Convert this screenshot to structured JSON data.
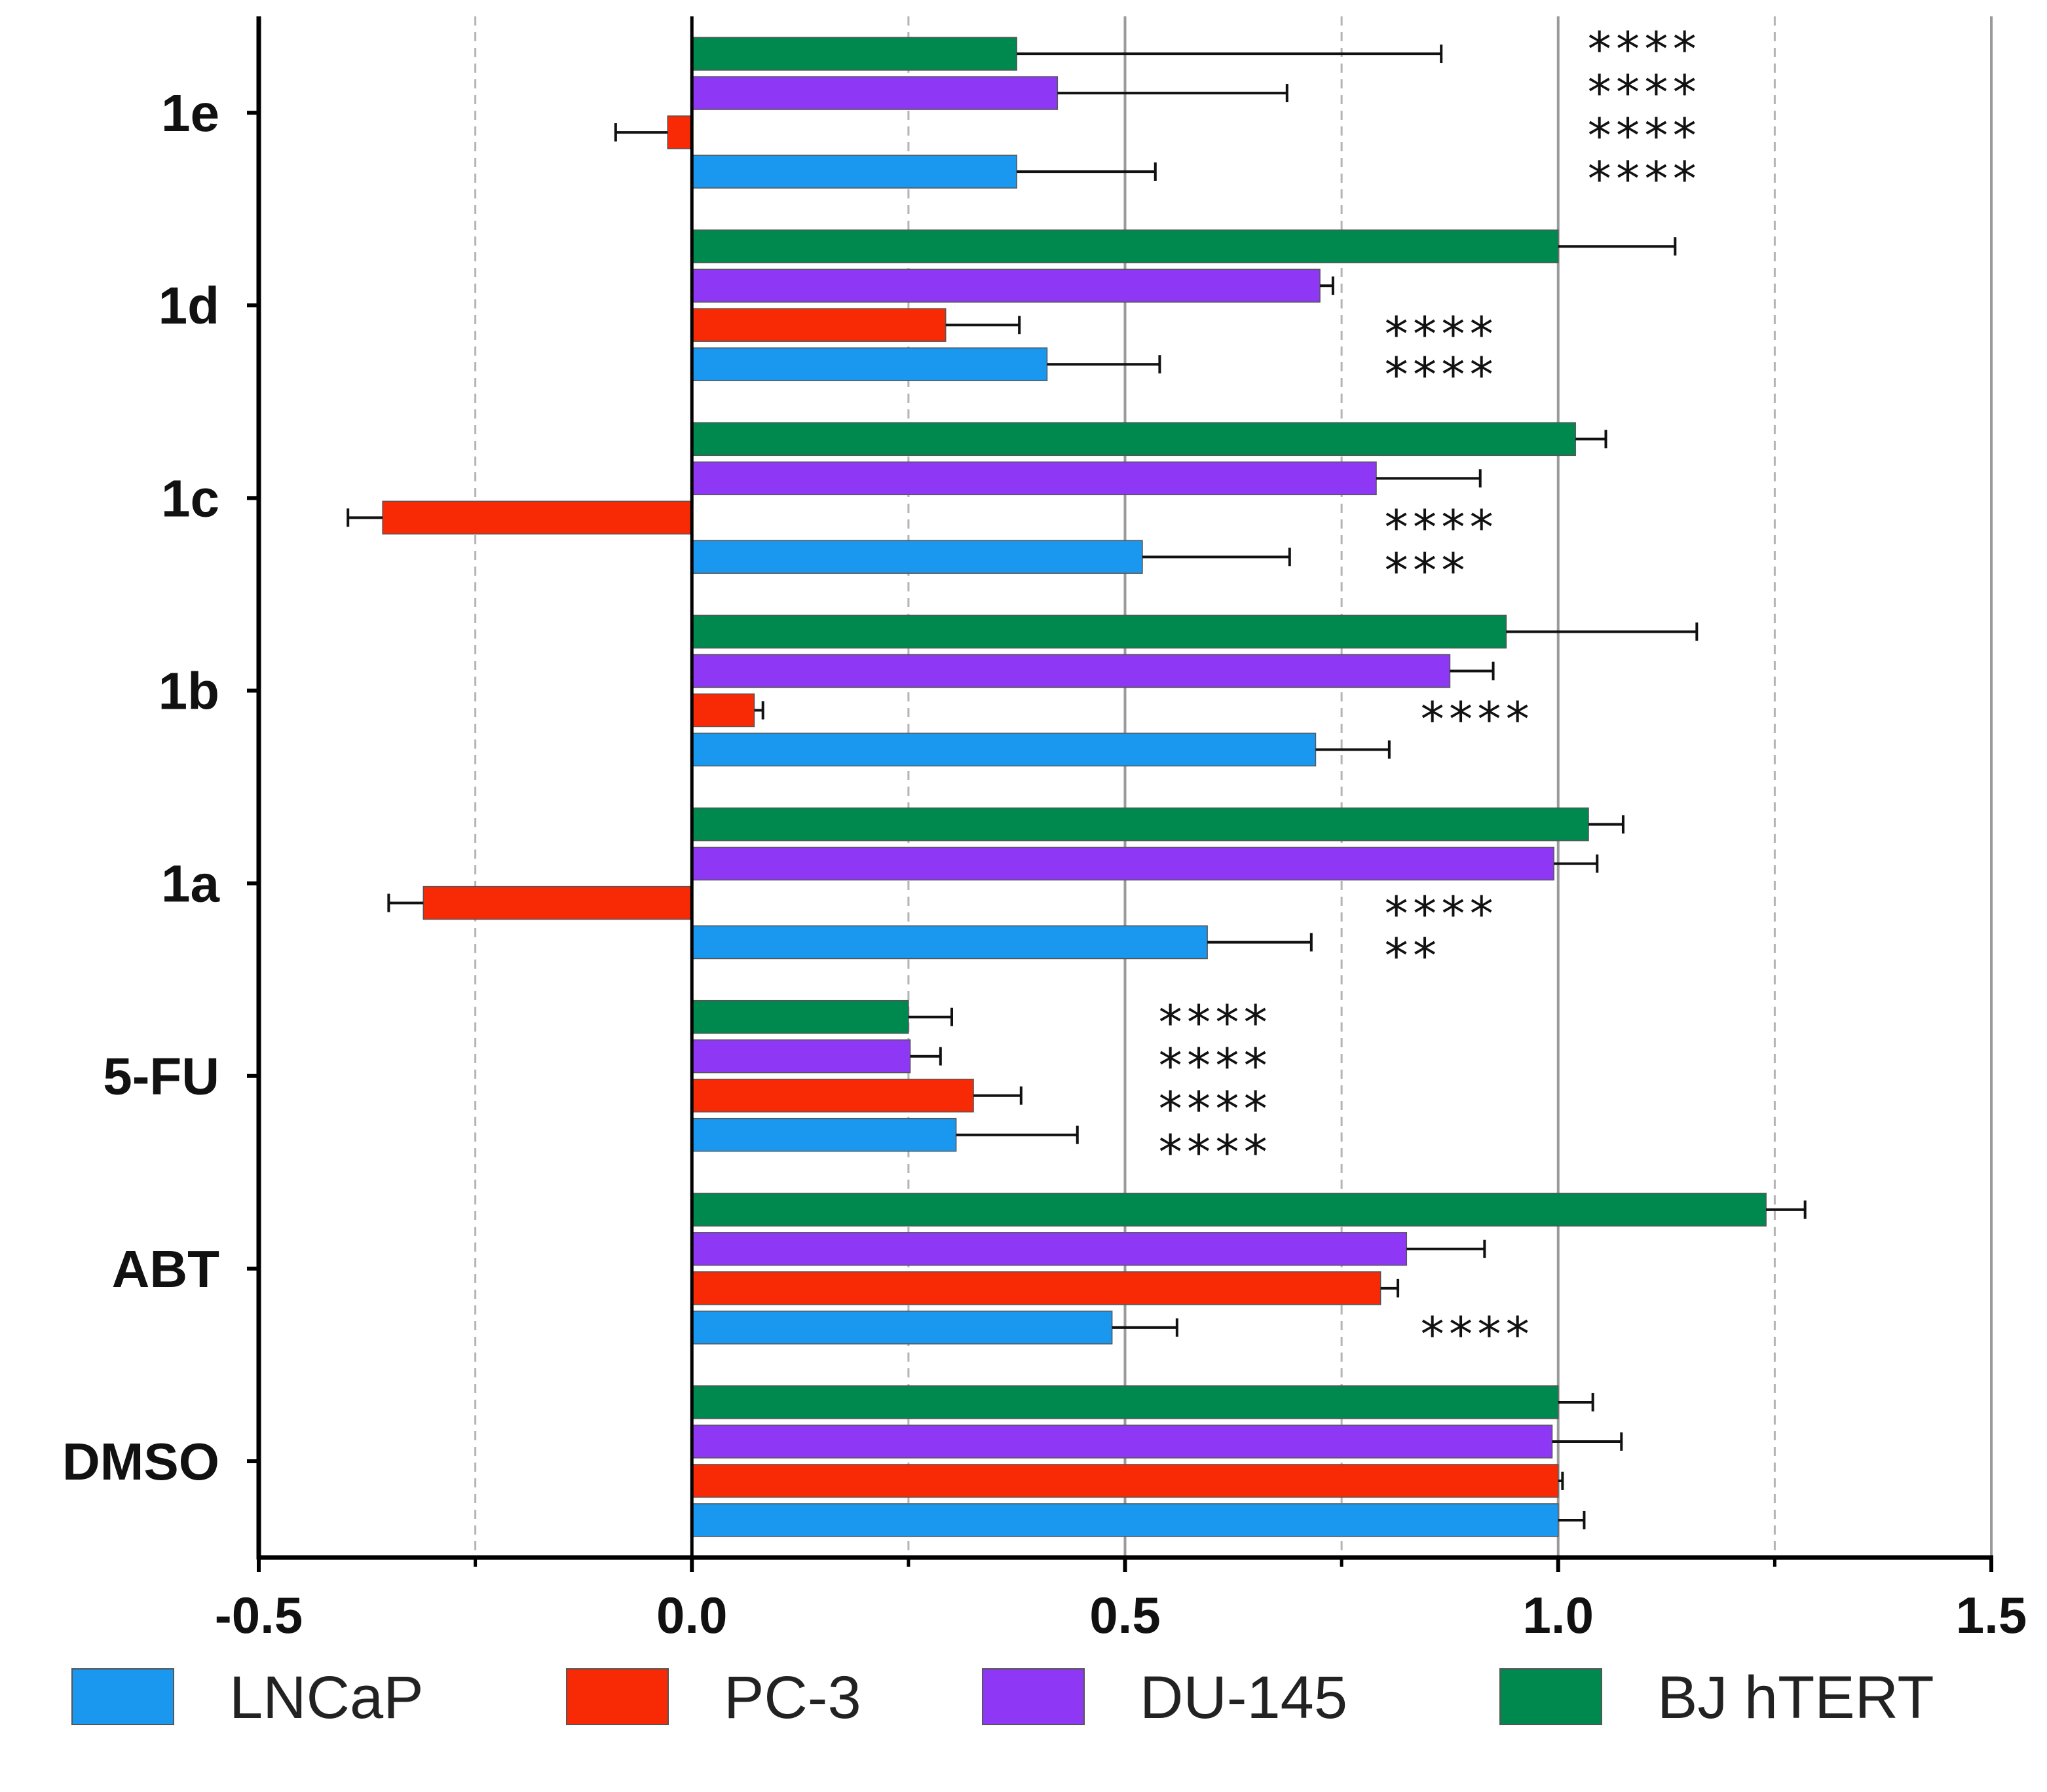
{
  "chart_data": {
    "type": "bar",
    "orientation": "horizontal",
    "title": "",
    "xlabel": "",
    "ylabel": "",
    "xlim": [
      -0.5,
      1.5
    ],
    "x_ticks": [
      -0.5,
      0.0,
      0.5,
      1.0,
      1.5
    ],
    "x_tick_labels": [
      "-0.5",
      "0.0",
      "0.5",
      "1.0",
      "1.5"
    ],
    "grid": "vertical lines at every 0.25 (dashed at quarter values, solid at halves)",
    "legend_position": "bottom",
    "categories": [
      "1e",
      "1d",
      "1c",
      "1b",
      "1a",
      "5-FU",
      "ABT",
      "DMSO"
    ],
    "series": [
      {
        "name": "LNCaP",
        "color": "#1a98f0",
        "values": [
          0.375,
          0.41,
          0.52,
          0.72,
          0.595,
          0.305,
          0.485,
          1.0
        ],
        "errors": [
          0.16,
          0.13,
          0.17,
          0.085,
          0.12,
          0.14,
          0.075,
          0.03
        ]
      },
      {
        "name": "PC-3",
        "color": "#f82a06",
        "values": [
          -0.028,
          0.293,
          -0.357,
          0.072,
          -0.31,
          0.325,
          0.795,
          1.0
        ],
        "errors": [
          0.06,
          0.085,
          0.04,
          0.01,
          0.04,
          0.055,
          0.02,
          0.005
        ]
      },
      {
        "name": "DU-145",
        "color": "#8e38f5",
        "values": [
          0.422,
          0.725,
          0.79,
          0.875,
          0.995,
          0.252,
          0.825,
          0.993
        ],
        "errors": [
          0.265,
          0.015,
          0.12,
          0.05,
          0.05,
          0.035,
          0.09,
          0.08
        ]
      },
      {
        "name": "BJ hTERT",
        "color": "#00894f",
        "values": [
          0.375,
          1.0,
          1.02,
          0.94,
          1.035,
          0.25,
          1.24,
          1.0
        ],
        "errors": [
          0.49,
          0.135,
          0.035,
          0.22,
          0.04,
          0.05,
          0.045,
          0.04
        ]
      }
    ],
    "annotations": [
      {
        "category": "1e",
        "lines": [
          "****",
          "****",
          "****",
          "****"
        ]
      },
      {
        "category": "1d",
        "lines": [
          "****",
          "****"
        ]
      },
      {
        "category": "1c",
        "lines": [
          "****",
          "***"
        ]
      },
      {
        "category": "1b",
        "lines": [
          "****"
        ]
      },
      {
        "category": "1a",
        "lines": [
          "****",
          "**"
        ]
      },
      {
        "category": "5-FU",
        "lines": [
          "****",
          "****",
          "****",
          "****"
        ]
      },
      {
        "category": "ABT",
        "lines": [
          "****"
        ]
      },
      {
        "category": "DMSO",
        "lines": []
      }
    ]
  }
}
